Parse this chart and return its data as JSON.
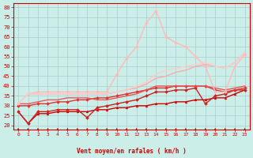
{
  "bg_color": "#cceee8",
  "grid_color": "#aacccc",
  "xlabel": "Vent moyen/en rafales ( km/h )",
  "ylabel_ticks": [
    20,
    25,
    30,
    35,
    40,
    45,
    50,
    55,
    60,
    65,
    70,
    75,
    80
  ],
  "xlim": [
    -0.5,
    23.5
  ],
  "ylim": [
    18,
    82
  ],
  "x_ticks": [
    0,
    1,
    2,
    3,
    4,
    5,
    6,
    7,
    8,
    9,
    10,
    11,
    12,
    13,
    14,
    15,
    16,
    17,
    18,
    19,
    20,
    21,
    22,
    23
  ],
  "series": [
    {
      "x": [
        0,
        1,
        2,
        3,
        4,
        5,
        6,
        7,
        8,
        9,
        10,
        11,
        12,
        13,
        14,
        15,
        16,
        17,
        18,
        19,
        20,
        21,
        22,
        23
      ],
      "y": [
        27,
        21,
        26,
        26,
        27,
        27,
        27,
        27,
        28,
        28,
        29,
        29,
        30,
        30,
        31,
        31,
        32,
        32,
        33,
        33,
        34,
        34,
        36,
        38
      ],
      "color": "#cc0000",
      "lw": 1.0,
      "marker": "^",
      "ms": 2.0
    },
    {
      "x": [
        0,
        1,
        2,
        3,
        4,
        5,
        6,
        7,
        8,
        9,
        10,
        11,
        12,
        13,
        14,
        15,
        16,
        17,
        18,
        19,
        20,
        21,
        22,
        23
      ],
      "y": [
        27,
        21,
        27,
        27,
        28,
        28,
        28,
        24,
        29,
        30,
        31,
        32,
        33,
        35,
        37,
        37,
        38,
        38,
        39,
        31,
        35,
        36,
        38,
        38
      ],
      "color": "#cc2222",
      "lw": 1.0,
      "marker": "D",
      "ms": 2.0
    },
    {
      "x": [
        0,
        1,
        2,
        3,
        4,
        5,
        6,
        7,
        8,
        9,
        10,
        11,
        12,
        13,
        14,
        15,
        16,
        17,
        18,
        19,
        20,
        21,
        22,
        23
      ],
      "y": [
        30,
        30,
        31,
        31,
        32,
        32,
        33,
        33,
        34,
        34,
        35,
        36,
        37,
        38,
        39,
        39,
        40,
        40,
        40,
        40,
        38,
        37,
        38,
        39
      ],
      "color": "#dd3333",
      "lw": 1.0,
      "marker": "D",
      "ms": 2.0
    },
    {
      "x": [
        0,
        1,
        2,
        3,
        4,
        5,
        6,
        7,
        8,
        9,
        10,
        11,
        12,
        13,
        14,
        15,
        16,
        17,
        18,
        19,
        20,
        21,
        22,
        23
      ],
      "y": [
        31,
        31,
        32,
        33,
        33,
        34,
        34,
        34,
        33,
        33,
        34,
        35,
        36,
        38,
        40,
        40,
        40,
        40,
        40,
        40,
        39,
        38,
        39,
        40
      ],
      "color": "#ee5555",
      "lw": 1.0,
      "marker": null,
      "ms": 0
    },
    {
      "x": [
        0,
        1,
        2,
        3,
        4,
        5,
        6,
        7,
        8,
        9,
        10,
        11,
        12,
        13,
        14,
        15,
        16,
        17,
        18,
        19,
        20,
        21,
        22,
        23
      ],
      "y": [
        31,
        36,
        36,
        36,
        36,
        36,
        36,
        36,
        36,
        36,
        37,
        38,
        39,
        41,
        44,
        45,
        47,
        48,
        50,
        51,
        50,
        49,
        52,
        57
      ],
      "color": "#ffaaaa",
      "lw": 1.0,
      "marker": null,
      "ms": 0
    },
    {
      "x": [
        0,
        1,
        2,
        3,
        4,
        5,
        6,
        7,
        8,
        9,
        10,
        11,
        12,
        13,
        14,
        15,
        16,
        17,
        18,
        19,
        20,
        21,
        22,
        23
      ],
      "y": [
        31,
        36,
        37,
        37,
        37,
        37,
        37,
        37,
        37,
        37,
        46,
        54,
        60,
        72,
        78,
        65,
        62,
        60,
        55,
        50,
        37,
        37,
        50,
        56
      ],
      "color": "#ffbbbb",
      "lw": 1.0,
      "marker": "D",
      "ms": 2.0
    },
    {
      "x": [
        0,
        1,
        2,
        3,
        4,
        5,
        6,
        7,
        8,
        9,
        10,
        11,
        12,
        13,
        14,
        15,
        16,
        17,
        18,
        19,
        20,
        21,
        22,
        23
      ],
      "y": [
        31,
        36,
        36,
        36,
        36,
        36,
        36,
        36,
        36,
        36,
        37,
        38,
        40,
        42,
        46,
        48,
        49,
        50,
        51,
        52,
        50,
        49,
        52,
        57
      ],
      "color": "#ffcccc",
      "lw": 1.0,
      "marker": null,
      "ms": 0
    }
  ],
  "arrow_color": "#cc0000",
  "xlabel_color": "#cc0000",
  "tick_color": "#cc0000"
}
